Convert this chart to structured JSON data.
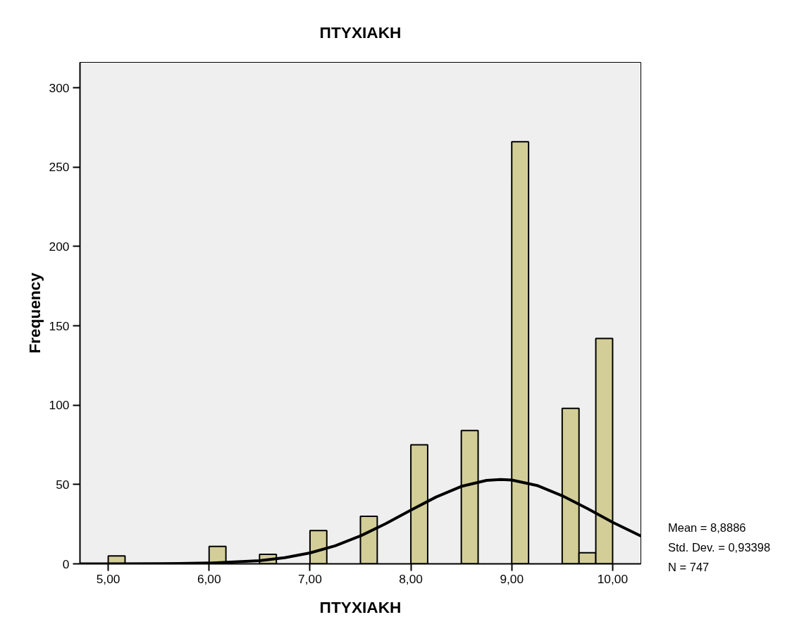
{
  "chart_data": {
    "type": "histogram",
    "title": "ΠΤΥΧΙΑΚΗ",
    "xlabel": "ΠΤΥΧΙΑΚΗ",
    "ylabel": "Frequency",
    "bins": [
      5,
      5.1667,
      5.3333,
      5.5,
      5.6667,
      5.8333,
      6,
      6.1667,
      6.3333,
      6.5,
      6.6667,
      6.8333,
      7,
      7.1667,
      7.3333,
      7.5,
      7.6667,
      7.8333,
      8,
      8.1667,
      8.3333,
      8.5,
      8.6667,
      8.8333,
      9,
      9.1667,
      9.3333,
      9.5,
      9.6667,
      9.8333,
      10
    ],
    "values": [
      5,
      0,
      0,
      0,
      0,
      0,
      11,
      0,
      0,
      6,
      0,
      0,
      21,
      0,
      0,
      30,
      0,
      0,
      75,
      0,
      0,
      84,
      0,
      0,
      266,
      0,
      0,
      98,
      7,
      142
    ],
    "color": "#d3ce97",
    "series": [
      {
        "type": "line",
        "color": "#000000",
        "x": [
          4.72,
          5.0,
          5.5,
          6.0,
          6.5,
          6.75,
          7.0,
          7.25,
          7.5,
          7.75,
          8.0,
          8.25,
          8.5,
          8.75,
          8.89,
          9.0,
          9.25,
          9.5,
          9.75,
          10.0,
          10.28
        ],
        "values": [
          0,
          0,
          0.1,
          0.5,
          2,
          3.9,
          6.9,
          11.4,
          17.6,
          25.3,
          33.8,
          42.1,
          48.8,
          52.6,
          53.2,
          52.8,
          49.4,
          42.9,
          34.8,
          26.2,
          17.5
        ]
      }
    ],
    "xlim": [
      4.72,
      10.28
    ],
    "ylim": [
      0,
      316
    ],
    "xticks": [
      {
        "value": 5,
        "label": "5,00"
      },
      {
        "value": 6,
        "label": "6,00"
      },
      {
        "value": 7,
        "label": "7,00"
      },
      {
        "value": 8,
        "label": "8,00"
      },
      {
        "value": 9,
        "label": "9,00"
      },
      {
        "value": 10,
        "label": "10,00"
      }
    ],
    "yticks": [
      0,
      50,
      100,
      150,
      200,
      250,
      300
    ],
    "grid": false,
    "annotations": [
      "Mean = 8,8886",
      "Std. Dev. = 0,93398",
      "N = 747"
    ]
  }
}
